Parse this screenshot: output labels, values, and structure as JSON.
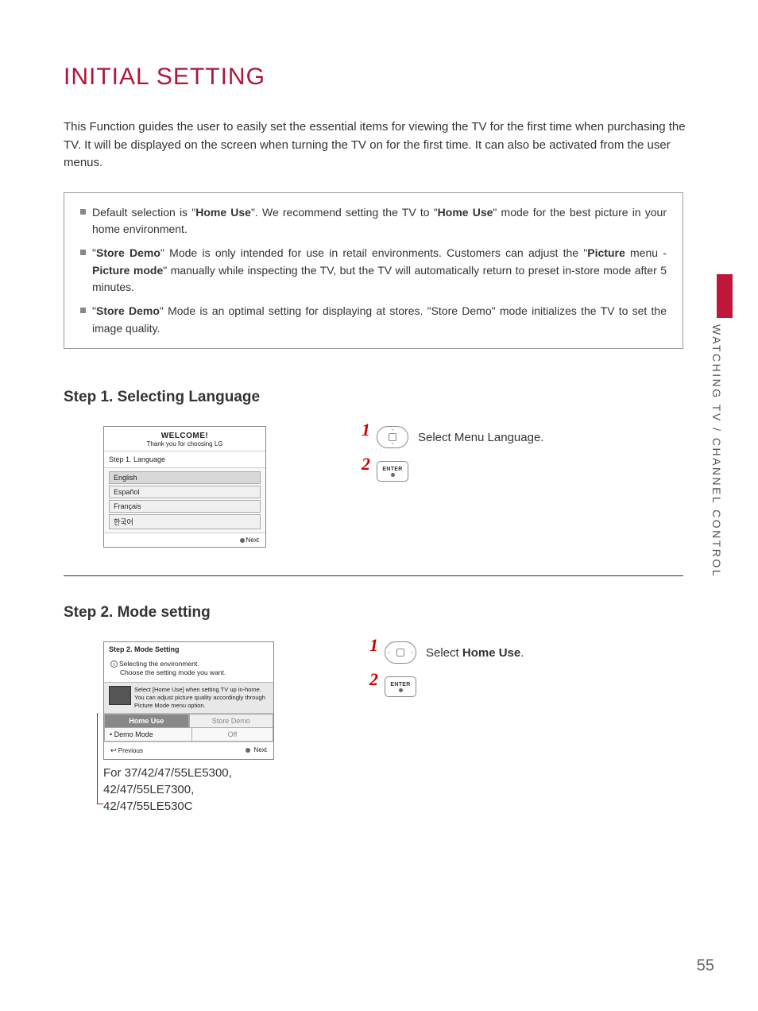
{
  "title": "INITIAL SETTING",
  "intro": "This Function guides the user to easily set the essential items for viewing the TV for the first time when purchasing the TV. It will be displayed on the screen when turning the TV on for the first time. It can also be activated from the user menus.",
  "infobox": {
    "items": [
      "Default selection is \"<b>Home Use</b>\". We recommend setting the TV to \"<b>Home Use</b>\" mode for the best picture in your home environment.",
      "\"<b>Store Demo</b>\" Mode is only intended for use in retail environments. Customers can adjust the \"<b>Picture</b> menu - <b>Picture mode</b>\" manually while inspecting the TV, but the TV will automatically return to preset in-store mode after 5 minutes.",
      "\"<b>Store Demo</b>\" Mode is an optimal setting for displaying at stores. \"Store Demo\" mode initializes the TV to set the image quality."
    ]
  },
  "step1": {
    "title": "Step 1. Selecting Language",
    "screen": {
      "welcome": "WELCOME!",
      "sub": "Thank you for choosing LG",
      "stepline": "Step 1. Language",
      "langs": [
        "English",
        "Español",
        "Français",
        "한국어"
      ],
      "selected_idx": 0,
      "next": "Next"
    },
    "actions": [
      {
        "num": "1",
        "type": "nav-updown",
        "desc": "Select Menu Language."
      },
      {
        "num": "2",
        "type": "enter",
        "label": "ENTER",
        "desc": ""
      }
    ]
  },
  "step2": {
    "title": "Step 2. Mode setting",
    "screen": {
      "stepline": "Step 2. Mode Setting",
      "env1": "Selecting the environment.",
      "env2": "Choose the setting mode you want.",
      "help": "Select [Home Use] when setting TV up in-home. You can adjust picture quality accordingly through Picture Mode menu option.",
      "btn_home": "Home Use",
      "btn_store": "Store Demo",
      "demo_lbl": "• Demo Mode",
      "demo_val": "Off",
      "prev": "Previous",
      "next": "Next"
    },
    "actions": [
      {
        "num": "1",
        "type": "nav-lr",
        "desc": "Select <b>Home Use</b>."
      },
      {
        "num": "2",
        "type": "enter",
        "label": "ENTER",
        "desc": ""
      }
    ],
    "note_lines": [
      "For 37/42/47/55LE5300,",
      "42/47/55LE7300,",
      "42/47/55LE530C"
    ]
  },
  "side_label": "WATCHING TV / CHANNEL CONTROL",
  "page_number": "55",
  "colors": {
    "accent": "#b0163a",
    "text": "#333333",
    "border": "#888888",
    "side_red": "#c0163a"
  }
}
